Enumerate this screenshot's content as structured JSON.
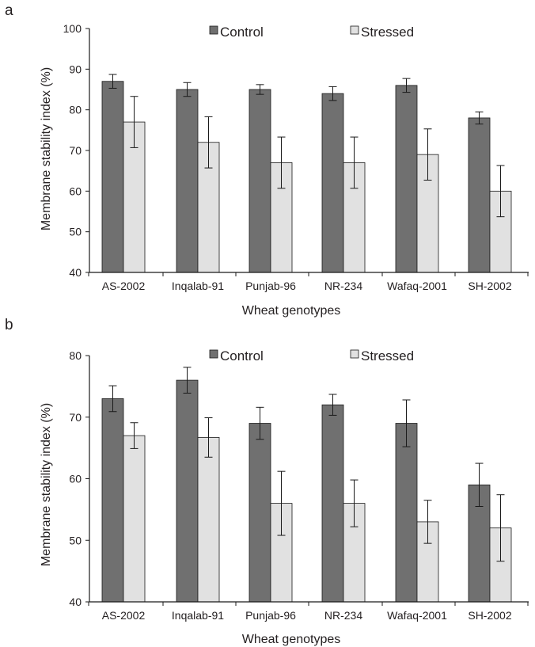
{
  "colors": {
    "control": "#707070",
    "stressed": "#e1e1e1",
    "stroke": "#1a1a1a"
  },
  "chart_data": [
    {
      "type": "bar",
      "panel_label": "a",
      "categories": [
        "AS-2002",
        "Inqalab-91",
        "Punjab-96",
        "NR-234",
        "Wafaq-2001",
        "SH-2002"
      ],
      "series": [
        {
          "name": "Control",
          "values": [
            87,
            85,
            85,
            84,
            86,
            78
          ],
          "errors": [
            1.7,
            1.7,
            1.2,
            1.7,
            1.7,
            1.5
          ]
        },
        {
          "name": "Stressed",
          "values": [
            77,
            72,
            67,
            67,
            69,
            60
          ],
          "errors": [
            6.3,
            6.3,
            6.3,
            6.3,
            6.3,
            6.3
          ]
        }
      ],
      "xlabel": "Wheat genotypes",
      "ylabel": "Membrane stability index (%)",
      "ylim": [
        40,
        100
      ],
      "yticks": [
        40,
        50,
        60,
        70,
        80,
        90,
        100
      ],
      "legend": "top",
      "grid": false
    },
    {
      "type": "bar",
      "panel_label": "b",
      "categories": [
        "AS-2002",
        "Inqalab-91",
        "Punjab-96",
        "NR-234",
        "Wafaq-2001",
        "SH-2002"
      ],
      "series": [
        {
          "name": "Control",
          "values": [
            73,
            76,
            69,
            72,
            69,
            59
          ],
          "errors": [
            2.1,
            2.1,
            2.6,
            1.7,
            3.8,
            3.5
          ]
        },
        {
          "name": "Stressed",
          "values": [
            67,
            66.7,
            56,
            56,
            53,
            52
          ],
          "errors": [
            2.1,
            3.2,
            5.2,
            3.8,
            3.5,
            5.4
          ]
        }
      ],
      "xlabel": "Wheat genotypes",
      "ylabel": "Membrane stability index (%)",
      "ylim": [
        40,
        80
      ],
      "yticks": [
        40,
        50,
        60,
        70,
        80
      ],
      "legend": "top",
      "grid": false
    }
  ]
}
